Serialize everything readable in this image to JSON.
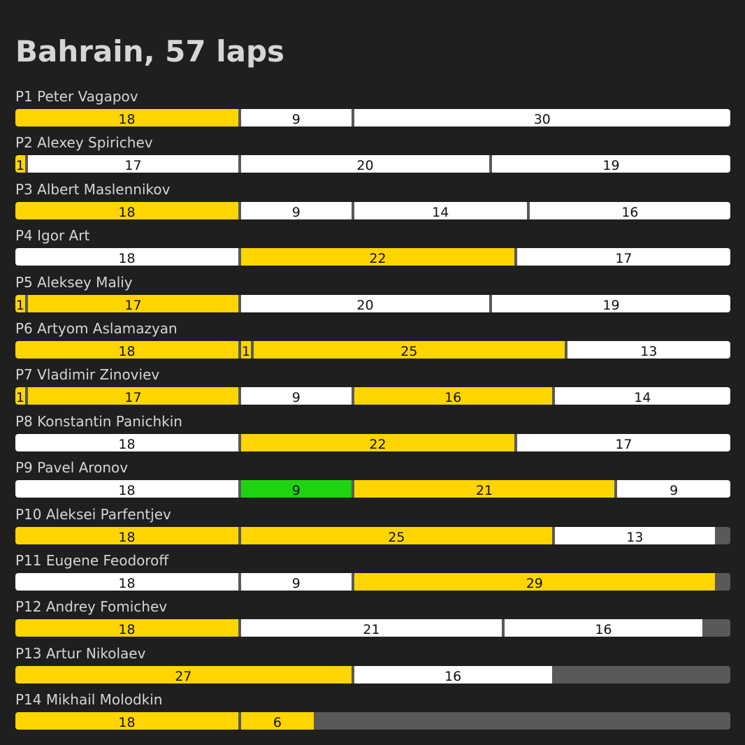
{
  "chart_data": {
    "type": "bar",
    "title": "Bahrain, 57 laps",
    "total_laps": 57,
    "colors": {
      "soft": "#ffd500",
      "hard": "#ffffff",
      "green": "#1ed30f",
      "not_completed": "#595959",
      "background": "#1f1f1f",
      "text": "#d6d6d6"
    },
    "rows": [
      {
        "position": "P1",
        "name": "Peter Vagapov",
        "label": "P1 Peter Vagapov",
        "stints": [
          {
            "laps": 18,
            "compound": "soft"
          },
          {
            "laps": 9,
            "compound": "hard"
          },
          {
            "laps": 30,
            "compound": "hard"
          }
        ]
      },
      {
        "position": "P2",
        "name": "Alexey Spirichev",
        "label": "P2 Alexey Spirichev",
        "stints": [
          {
            "laps": 1,
            "compound": "soft"
          },
          {
            "laps": 17,
            "compound": "hard"
          },
          {
            "laps": 20,
            "compound": "hard"
          },
          {
            "laps": 19,
            "compound": "hard"
          }
        ]
      },
      {
        "position": "P3",
        "name": "Albert Maslennikov",
        "label": "P3 Albert Maslennikov",
        "stints": [
          {
            "laps": 18,
            "compound": "soft"
          },
          {
            "laps": 9,
            "compound": "hard"
          },
          {
            "laps": 14,
            "compound": "hard"
          },
          {
            "laps": 16,
            "compound": "hard"
          }
        ]
      },
      {
        "position": "P4",
        "name": "Igor Art",
        "label": "P4 Igor Art",
        "stints": [
          {
            "laps": 18,
            "compound": "hard"
          },
          {
            "laps": 22,
            "compound": "soft"
          },
          {
            "laps": 17,
            "compound": "hard"
          }
        ]
      },
      {
        "position": "P5",
        "name": "Aleksey Maliy",
        "label": "P5 Aleksey Maliy",
        "stints": [
          {
            "laps": 1,
            "compound": "soft"
          },
          {
            "laps": 17,
            "compound": "soft"
          },
          {
            "laps": 20,
            "compound": "hard"
          },
          {
            "laps": 19,
            "compound": "hard"
          }
        ]
      },
      {
        "position": "P6",
        "name": "Artyom Aslamazyan",
        "label": "P6 Artyom Aslamazyan",
        "stints": [
          {
            "laps": 18,
            "compound": "soft"
          },
          {
            "laps": 1,
            "compound": "soft"
          },
          {
            "laps": 25,
            "compound": "soft"
          },
          {
            "laps": 13,
            "compound": "hard"
          }
        ]
      },
      {
        "position": "P7",
        "name": "Vladimir Zinoviev",
        "label": "P7 Vladimir Zinoviev",
        "stints": [
          {
            "laps": 1,
            "compound": "soft"
          },
          {
            "laps": 17,
            "compound": "soft"
          },
          {
            "laps": 9,
            "compound": "hard"
          },
          {
            "laps": 16,
            "compound": "soft"
          },
          {
            "laps": 14,
            "compound": "hard"
          }
        ]
      },
      {
        "position": "P8",
        "name": "Konstantin Panichkin",
        "label": "P8 Konstantin Panichkin",
        "stints": [
          {
            "laps": 18,
            "compound": "hard"
          },
          {
            "laps": 22,
            "compound": "soft"
          },
          {
            "laps": 17,
            "compound": "hard"
          }
        ]
      },
      {
        "position": "P9",
        "name": "Pavel Aronov",
        "label": "P9 Pavel Aronov",
        "stints": [
          {
            "laps": 18,
            "compound": "hard"
          },
          {
            "laps": 9,
            "compound": "green"
          },
          {
            "laps": 21,
            "compound": "soft"
          },
          {
            "laps": 9,
            "compound": "hard"
          }
        ]
      },
      {
        "position": "P10",
        "name": "Aleksei Parfentjev",
        "label": "P10 Aleksei Parfentjev",
        "stints": [
          {
            "laps": 18,
            "compound": "soft"
          },
          {
            "laps": 25,
            "compound": "soft"
          },
          {
            "laps": 13,
            "compound": "hard"
          }
        ]
      },
      {
        "position": "P11",
        "name": "Eugene Feodoroff",
        "label": "P11 Eugene Feodoroff",
        "stints": [
          {
            "laps": 18,
            "compound": "hard"
          },
          {
            "laps": 9,
            "compound": "hard"
          },
          {
            "laps": 29,
            "compound": "soft"
          }
        ]
      },
      {
        "position": "P12",
        "name": "Andrey Fomichev",
        "label": "P12 Andrey Fomichev",
        "stints": [
          {
            "laps": 18,
            "compound": "soft"
          },
          {
            "laps": 21,
            "compound": "hard"
          },
          {
            "laps": 16,
            "compound": "hard"
          }
        ]
      },
      {
        "position": "P13",
        "name": "Artur Nikolaev",
        "label": "P13 Artur Nikolaev",
        "stints": [
          {
            "laps": 27,
            "compound": "soft"
          },
          {
            "laps": 16,
            "compound": "hard"
          }
        ]
      },
      {
        "position": "P14",
        "name": "Mikhail Molodkin",
        "label": "P14 Mikhail Molodkin",
        "stints": [
          {
            "laps": 18,
            "compound": "soft"
          },
          {
            "laps": 6,
            "compound": "soft"
          }
        ]
      }
    ]
  }
}
